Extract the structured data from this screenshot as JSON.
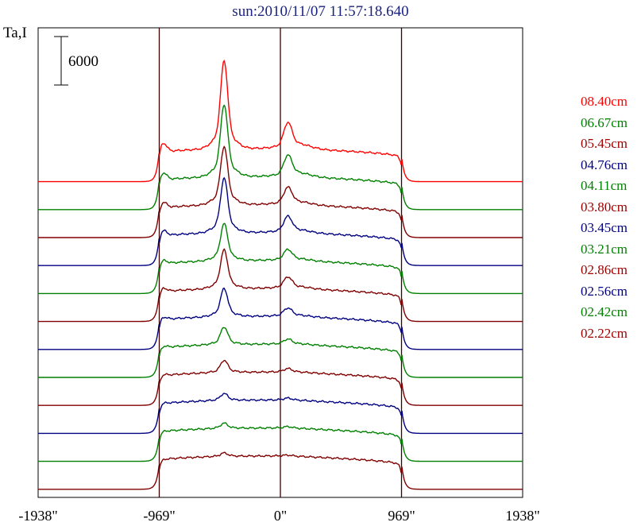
{
  "chart_data": {
    "type": "line",
    "title": "sun:2010/11/07 11:57:18.640",
    "ylabel": "Ta,I",
    "scale_bar_label": "6000",
    "scale_bar_value": 6000,
    "x_ticks": [
      "-1938\"",
      "-969\"",
      "0\"",
      "969\"",
      "1938\""
    ],
    "x_tick_values": [
      -1938,
      -969,
      0,
      969,
      1938
    ],
    "xlim": [
      -1938,
      1938
    ],
    "vertical_lines": [
      -969,
      0,
      969
    ],
    "series": [
      {
        "name": "08.40cm",
        "color": "#ff0000",
        "offset": 0,
        "amp": 1.0
      },
      {
        "name": "06.67cm",
        "color": "#008000",
        "offset": 1,
        "amp": 0.82
      },
      {
        "name": "05.45cm",
        "color": "#800000",
        "offset": 2,
        "amp": 0.66
      },
      {
        "name": "04.76cm",
        "color": "#000080",
        "offset": 3,
        "amp": 0.62
      },
      {
        "name": "04.11cm",
        "color": "#008000",
        "offset": 4,
        "amp": 0.42
      },
      {
        "name": "03.80cm",
        "color": "#800000",
        "offset": 5,
        "amp": 0.44
      },
      {
        "name": "03.45cm",
        "color": "#000080",
        "offset": 6,
        "amp": 0.32
      },
      {
        "name": "03.21cm",
        "color": "#008000",
        "offset": 7,
        "amp": 0.2
      },
      {
        "name": "02.86cm",
        "color": "#800000",
        "offset": 8,
        "amp": 0.14
      },
      {
        "name": "02.56cm",
        "color": "#000080",
        "offset": 9,
        "amp": 0.08
      },
      {
        "name": "02.42cm",
        "color": "#008000",
        "offset": 10,
        "amp": 0.06
      },
      {
        "name": "02.22cm",
        "color": "#800000",
        "offset": 11,
        "amp": 0.04
      }
    ]
  }
}
